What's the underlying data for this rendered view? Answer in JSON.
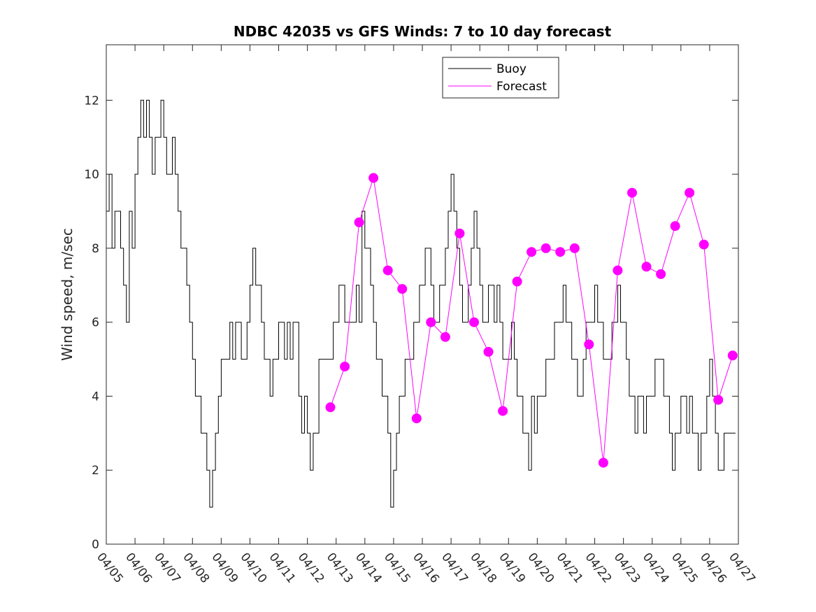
{
  "chart_data": {
    "type": "line",
    "title": "NDBC 42035 vs GFS Winds: 7 to 10 day forecast",
    "xlabel": "",
    "ylabel": "Wind speed, m/sec",
    "x_ticks": [
      "04/05",
      "04/06",
      "04/07",
      "04/08",
      "04/09",
      "04/10",
      "04/11",
      "04/12",
      "04/13",
      "04/14",
      "04/15",
      "04/16",
      "04/17",
      "04/18",
      "04/19",
      "04/20",
      "04/21",
      "04/22",
      "04/23",
      "04/24",
      "04/25",
      "04/26",
      "04/27"
    ],
    "ylim": [
      0,
      13.5
    ],
    "y_ticks": [
      0,
      2,
      4,
      6,
      8,
      10,
      12
    ],
    "legend": {
      "placement": "top-center",
      "entries": [
        {
          "label": "Buoy",
          "color": "#000000"
        },
        {
          "label": "Forecast",
          "color": "#ff00ff"
        }
      ]
    },
    "colors": {
      "buoy": "#000000",
      "forecast": "#ff00ff"
    },
    "series": [
      {
        "name": "Buoy",
        "x_day_offset_from_04_05": [
          0,
          0.1,
          0.2,
          0.3,
          0.4,
          0.5,
          0.6,
          0.7,
          0.8,
          0.9,
          1.0,
          1.1,
          1.2,
          1.3,
          1.4,
          1.5,
          1.6,
          1.7,
          1.8,
          1.9,
          2.0,
          2.1,
          2.2,
          2.3,
          2.4,
          2.5,
          2.6,
          2.7,
          2.8,
          2.9,
          3.0,
          3.1,
          3.2,
          3.3,
          3.4,
          3.5,
          3.6,
          3.7,
          3.8,
          3.9,
          4.0,
          4.1,
          4.2,
          4.3,
          4.4,
          4.5,
          4.6,
          4.7,
          4.8,
          4.9,
          5.0,
          5.1,
          5.2,
          5.3,
          5.4,
          5.5,
          5.6,
          5.7,
          5.8,
          5.9,
          6.0,
          6.1,
          6.2,
          6.3,
          6.4,
          6.5,
          6.6,
          6.7,
          6.8,
          6.9,
          7.0,
          7.1,
          7.2,
          7.3,
          7.4,
          7.5,
          7.6,
          7.7,
          7.8,
          7.9,
          8.0,
          8.1,
          8.2,
          8.3,
          8.4,
          8.5,
          8.6,
          8.7,
          8.8,
          8.9,
          9.0,
          9.1,
          9.2,
          9.3,
          9.4,
          9.5,
          9.6,
          9.7,
          9.8,
          9.9,
          10.0,
          10.1,
          10.2,
          10.3,
          10.4,
          10.5,
          10.6,
          10.7,
          10.8,
          10.9,
          11.0,
          11.1,
          11.2,
          11.3,
          11.4,
          11.5,
          11.6,
          11.7,
          11.8,
          11.9,
          12.0,
          12.1,
          12.2,
          12.3,
          12.4,
          12.5,
          12.6,
          12.7,
          12.8,
          12.9,
          13.0,
          13.1,
          13.2,
          13.3,
          13.4,
          13.5,
          13.6,
          13.7,
          13.8,
          13.9,
          14.0,
          14.1,
          14.2,
          14.3,
          14.4,
          14.5,
          14.6,
          14.7,
          14.8,
          14.9,
          15.0,
          15.1,
          15.2,
          15.3,
          15.4,
          15.5,
          15.6,
          15.7,
          15.8,
          15.9,
          16.0,
          16.1,
          16.2,
          16.3,
          16.4,
          16.5,
          16.6,
          16.7,
          16.8,
          16.9,
          17.0,
          17.1,
          17.2,
          17.3,
          17.4,
          17.5,
          17.6,
          17.7,
          17.8,
          17.9,
          18.0,
          18.1,
          18.2,
          18.3,
          18.4,
          18.5,
          18.6,
          18.7,
          18.8,
          18.9,
          19.0,
          19.1,
          19.2,
          19.3,
          19.4,
          19.5,
          19.6,
          19.7,
          19.8,
          19.9,
          20.0,
          20.1,
          20.2,
          20.3,
          20.4,
          20.5,
          20.6,
          20.7,
          20.8,
          20.9,
          21.0,
          21.1,
          21.2,
          21.3,
          21.4,
          21.5,
          21.6,
          21.7,
          21.8,
          21.9,
          22.0
        ],
        "values": [
          9,
          10,
          8,
          9,
          9,
          8,
          7,
          6,
          9,
          8,
          10,
          11,
          12,
          11,
          12,
          11,
          10,
          11,
          11,
          12,
          11,
          10,
          10,
          11,
          10,
          9,
          8,
          8,
          7,
          6,
          5,
          4,
          4,
          3,
          3,
          2,
          1,
          2,
          3,
          4,
          5,
          5,
          5,
          6,
          5,
          6,
          6,
          5,
          5,
          6,
          7,
          8,
          7,
          7,
          6,
          5,
          5,
          4,
          5,
          5,
          6,
          6,
          5,
          6,
          5,
          6,
          6,
          4,
          3,
          4,
          3,
          2,
          3,
          3,
          5,
          5,
          5,
          5,
          5,
          6,
          6,
          7,
          7,
          6,
          6,
          6,
          6,
          7,
          6,
          9,
          8,
          8,
          7,
          6,
          5,
          5,
          4,
          4,
          3,
          1,
          2,
          3,
          4,
          4,
          5,
          5,
          5,
          6,
          6,
          7,
          7,
          8,
          8,
          7,
          6,
          6,
          7,
          7,
          8,
          9,
          10,
          9,
          8,
          7,
          6,
          6,
          7,
          8,
          9,
          8,
          7,
          6,
          6,
          7,
          7,
          6,
          7,
          6,
          5,
          5,
          5,
          6,
          5,
          4,
          4,
          3,
          3,
          2,
          4,
          3,
          4,
          4,
          4,
          5,
          5,
          5,
          6,
          6,
          6,
          7,
          6,
          6,
          5,
          5,
          4,
          4,
          5,
          6,
          6,
          6,
          7,
          6,
          6,
          5,
          5,
          5,
          6,
          6,
          7,
          6,
          6,
          5,
          4,
          4,
          3,
          4,
          4,
          3,
          4,
          4,
          4,
          5,
          5,
          5,
          4,
          4,
          3,
          2,
          3,
          3,
          4,
          4,
          3,
          4,
          3,
          3,
          2,
          3,
          3,
          4,
          5,
          4,
          3,
          2,
          2,
          3,
          3,
          3,
          3
        ]
      },
      {
        "name": "Forecast",
        "x_day_offset_from_04_05": [
          7.8,
          8.3,
          8.8,
          9.3,
          9.8,
          10.3,
          10.8,
          11.3,
          11.8,
          12.3,
          12.8,
          13.3,
          13.8,
          14.3,
          14.8,
          15.3,
          15.8,
          16.3,
          16.8,
          17.3,
          17.8,
          18.3,
          18.8,
          19.3,
          19.8,
          20.3,
          20.8,
          21.3,
          21.8
        ],
        "values": [
          3.7,
          4.8,
          8.7,
          9.9,
          7.4,
          6.9,
          3.4,
          6.0,
          5.6,
          8.4,
          6.0,
          5.2,
          3.6,
          7.1,
          7.9,
          8.0,
          7.9,
          8.0,
          5.4,
          2.2,
          7.4,
          9.5,
          7.5,
          7.3,
          8.6,
          9.5,
          8.1,
          3.9,
          5.1
        ]
      }
    ]
  }
}
